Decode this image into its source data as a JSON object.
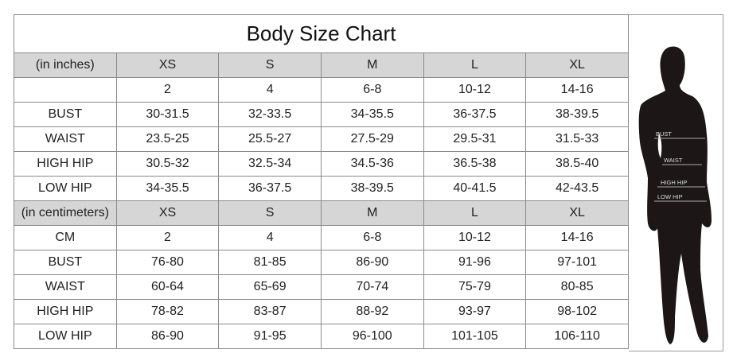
{
  "title": "Body Size Chart",
  "inches": {
    "header": [
      "(in inches)",
      "XS",
      "S",
      "M",
      "L",
      "XL"
    ],
    "rows": [
      [
        "",
        "2",
        "4",
        "6-8",
        "10-12",
        "14-16"
      ],
      [
        "BUST",
        "30-31.5",
        "32-33.5",
        "34-35.5",
        "36-37.5",
        "38-39.5"
      ],
      [
        "WAIST",
        "23.5-25",
        "25.5-27",
        "27.5-29",
        "29.5-31",
        "31.5-33"
      ],
      [
        "HIGH HIP",
        "30.5-32",
        "32.5-34",
        "34.5-36",
        "36.5-38",
        "38.5-40"
      ],
      [
        "LOW HIP",
        "34-35.5",
        "36-37.5",
        "38-39.5",
        "40-41.5",
        "42-43.5"
      ]
    ]
  },
  "centimeters": {
    "header": [
      "(in centimeters)",
      "XS",
      "S",
      "M",
      "L",
      "XL"
    ],
    "rows": [
      [
        "CM",
        "2",
        "4",
        "6-8",
        "10-12",
        "14-16"
      ],
      [
        "BUST",
        "76-80",
        "81-85",
        "86-90",
        "91-96",
        "97-101"
      ],
      [
        "WAIST",
        "60-64",
        "65-69",
        "70-74",
        "75-79",
        "80-85"
      ],
      [
        "HIGH HIP",
        "78-82",
        "83-87",
        "88-92",
        "93-97",
        "98-102"
      ],
      [
        "LOW HIP",
        "86-90",
        "91-95",
        "96-100",
        "101-105",
        "106-110"
      ]
    ]
  },
  "figure": {
    "labels": [
      "BUST",
      "WAIST",
      "HIGH HIP",
      "LOW HIP"
    ]
  },
  "colors": {
    "header_bg": "#d6d6d6",
    "border": "#8a8a8a",
    "silhouette": "#1c1616"
  }
}
